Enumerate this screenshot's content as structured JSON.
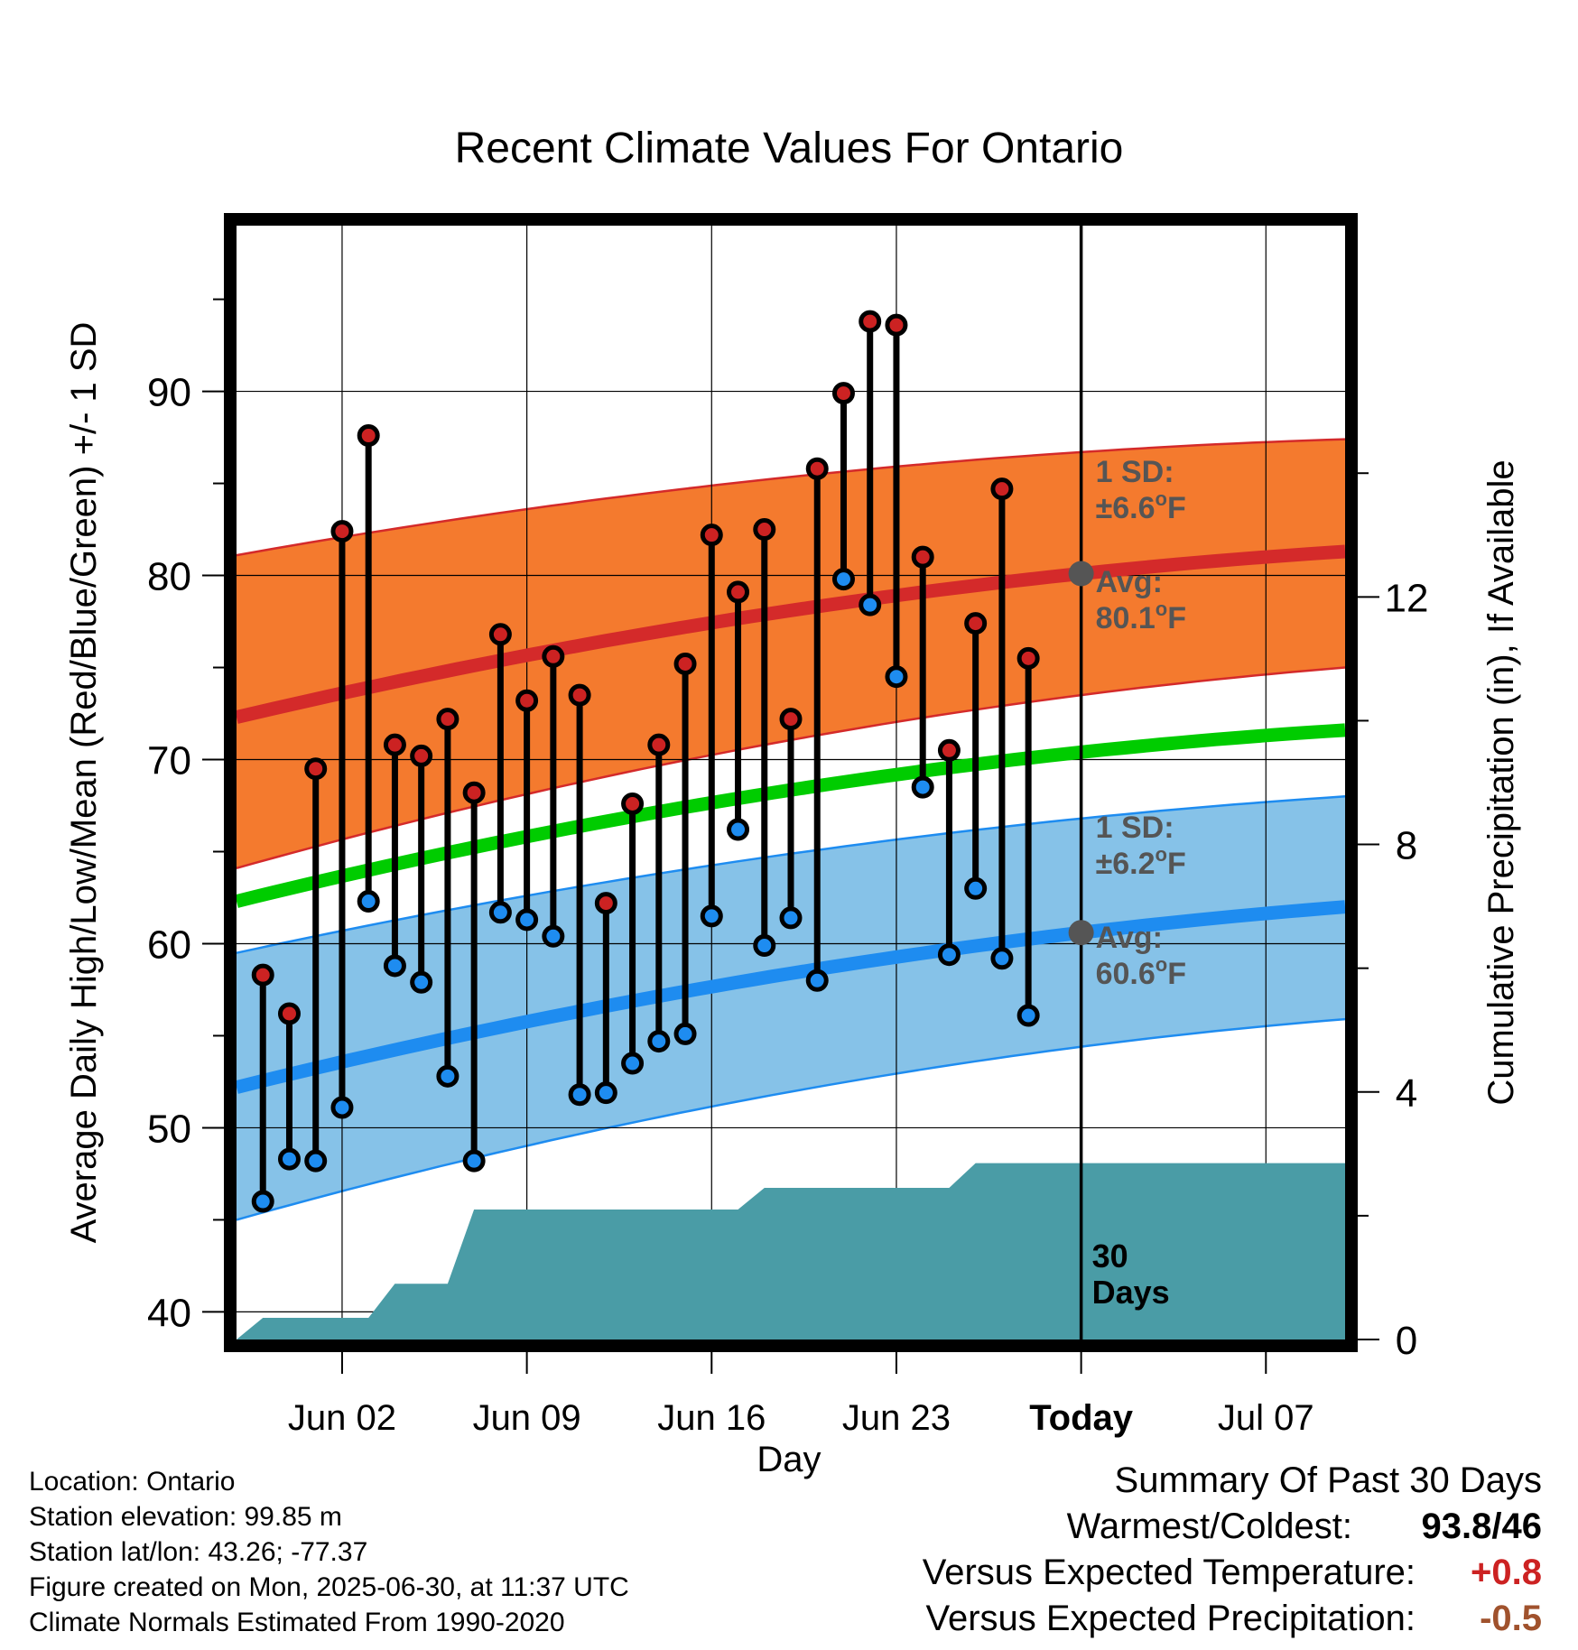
{
  "chart_data": {
    "type": "line",
    "title": "Recent Climate Values For Ontario",
    "xlabel": "Day",
    "ylabel": "Average Daily High/Low/Mean (Red/Blue/Green) +/- 1 SD",
    "y2label": "Cumulative Precipitation (in), If Available",
    "ylim": [
      38.5,
      99
    ],
    "y2lim": [
      0,
      18
    ],
    "grid": true,
    "x_tick_labels": [
      "Jun 02",
      "Jun 09",
      "Jun 16",
      "Jun 23",
      "Today",
      "Jul 07"
    ],
    "x_tick_dates": [
      "2025-06-02",
      "2025-06-09",
      "2025-06-16",
      "2025-06-23",
      "2025-06-30",
      "2025-07-07"
    ],
    "x_range": [
      "2025-05-29",
      "2025-07-10"
    ],
    "today": "2025-06-30",
    "y_ticks": [
      40,
      50,
      60,
      70,
      80,
      90
    ],
    "y2_ticks": [
      0,
      4,
      8,
      12
    ],
    "daily_dates": [
      "2025-05-30",
      "2025-05-31",
      "2025-06-01",
      "2025-06-02",
      "2025-06-03",
      "2025-06-04",
      "2025-06-05",
      "2025-06-06",
      "2025-06-07",
      "2025-06-08",
      "2025-06-09",
      "2025-06-10",
      "2025-06-11",
      "2025-06-12",
      "2025-06-13",
      "2025-06-14",
      "2025-06-15",
      "2025-06-16",
      "2025-06-17",
      "2025-06-18",
      "2025-06-19",
      "2025-06-20",
      "2025-06-21",
      "2025-06-22",
      "2025-06-23",
      "2025-06-24",
      "2025-06-25",
      "2025-06-26",
      "2025-06-27",
      "2025-06-28",
      "2025-06-29"
    ],
    "daily_high": [
      58.3,
      56.2,
      69.5,
      82.4,
      87.6,
      70.8,
      70.2,
      72.2,
      68.2,
      76.8,
      73.2,
      75.6,
      73.5,
      62.2,
      67.6,
      70.8,
      75.2,
      82.2,
      79.1,
      82.5,
      72.2,
      85.8,
      89.9,
      93.8,
      93.6,
      81.0,
      70.5,
      77.4,
      84.7,
      75.5,
      null
    ],
    "daily_low": [
      46.0,
      48.3,
      48.2,
      51.1,
      62.3,
      58.8,
      57.9,
      52.8,
      48.2,
      61.7,
      61.3,
      60.4,
      51.8,
      51.9,
      53.5,
      54.7,
      55.1,
      61.5,
      66.2,
      59.9,
      61.4,
      58.0,
      79.8,
      78.4,
      74.5,
      68.5,
      59.4,
      63.0,
      59.2,
      56.1,
      null
    ],
    "series": [
      {
        "name": "Avg High",
        "color": "#d42a2a",
        "x": [
          "2025-05-29",
          "2025-06-30",
          "2025-07-10"
        ],
        "y": [
          72.3,
          80.1,
          81.3
        ]
      },
      {
        "name": "High +1 SD",
        "x": [
          "2025-05-29",
          "2025-06-30",
          "2025-07-10"
        ],
        "y": [
          81.1,
          86.7,
          87.4
        ]
      },
      {
        "name": "High -1 SD",
        "x": [
          "2025-05-29",
          "2025-06-30",
          "2025-07-10"
        ],
        "y": [
          64.1,
          73.5,
          75.0
        ]
      },
      {
        "name": "Avg Mean",
        "color": "#00cc00",
        "x": [
          "2025-05-29",
          "2025-06-30",
          "2025-07-10"
        ],
        "y": [
          62.3,
          70.4,
          71.6
        ]
      },
      {
        "name": "Avg Low",
        "color": "#1e8cf0",
        "x": [
          "2025-05-29",
          "2025-06-30",
          "2025-07-10"
        ],
        "y": [
          52.2,
          60.6,
          62.0
        ]
      },
      {
        "name": "Low +1 SD",
        "x": [
          "2025-05-29",
          "2025-06-30",
          "2025-07-10"
        ],
        "y": [
          59.5,
          66.8,
          68.0
        ]
      },
      {
        "name": "Low -1 SD",
        "x": [
          "2025-05-29",
          "2025-06-30",
          "2025-07-10"
        ],
        "y": [
          45.0,
          54.4,
          55.9
        ]
      }
    ],
    "precip_cumulative": [
      {
        "date": "2025-05-29",
        "in": 0.0
      },
      {
        "date": "2025-05-30",
        "in": 0.35
      },
      {
        "date": "2025-06-03",
        "in": 0.35
      },
      {
        "date": "2025-06-04",
        "in": 0.9
      },
      {
        "date": "2025-06-06",
        "in": 0.9
      },
      {
        "date": "2025-06-07",
        "in": 2.1
      },
      {
        "date": "2025-06-17",
        "in": 2.1
      },
      {
        "date": "2025-06-18",
        "in": 2.45
      },
      {
        "date": "2025-06-25",
        "in": 2.45
      },
      {
        "date": "2025-06-26",
        "in": 2.85
      },
      {
        "date": "2025-07-10",
        "in": 2.85
      }
    ],
    "colors": {
      "high_band": "#f47a2e",
      "low_band": "#86c2e8",
      "precip": "#4a9ca6",
      "high_dot": "#cc2222",
      "low_dot": "#1e8cf0"
    },
    "annotations": {
      "high_sd": "1 SD:\n±6.6°F",
      "high_avg": "Avg:\n80.1°F",
      "low_sd": "1 SD:\n±6.2°F",
      "low_avg": "Avg:\n60.6°F",
      "days": "30\nDays"
    }
  },
  "footer": {
    "location": "Location: Ontario",
    "elevation": "Station elevation: 99.85 m",
    "latlon": "Station lat/lon: 43.26; -77.37",
    "created": "Figure created on Mon, 2025-06-30, at 11:37 UTC",
    "normals": "Climate Normals Estimated From 1990-2020"
  },
  "summary": {
    "title": "Summary Of Past 30 Days",
    "warm_cold_label": "Warmest/Coldest:",
    "warm_value": "93.8",
    "cold_value": "/46",
    "temp_label": "Versus Expected Temperature:",
    "temp_value": "+0.8",
    "temp_color": "#cc2222",
    "precip_label": "Versus Expected Precipitation:",
    "precip_value": "-0.5",
    "precip_color": "#a0522d"
  }
}
